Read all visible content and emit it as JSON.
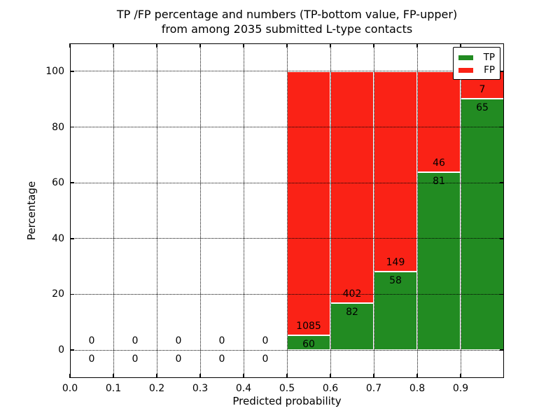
{
  "chart_data": {
    "type": "bar",
    "stacked": true,
    "title_lines": [
      "TP /FP percentage and numbers (TP-bottom value, FP-upper)",
      "from among 2035 submitted L-type contacts"
    ],
    "xlabel": "Predicted probability",
    "ylabel": "Percentage",
    "total_contacts": 2035,
    "xlim": [
      0.0,
      1.0
    ],
    "ylim": [
      -10,
      110
    ],
    "grid": "dotted",
    "bin_width": 0.1,
    "x_ticks": [
      0.0,
      0.1,
      0.2,
      0.3,
      0.4,
      0.5,
      0.6,
      0.7,
      0.8,
      0.9
    ],
    "x_tick_labels": [
      "0.0",
      "0.1",
      "0.2",
      "0.3",
      "0.4",
      "0.5",
      "0.6",
      "0.7",
      "0.8",
      "0.9"
    ],
    "y_ticks": [
      0,
      20,
      40,
      60,
      80,
      100
    ],
    "y_tick_labels": [
      "0",
      "20",
      "40",
      "60",
      "80",
      "100"
    ],
    "series_colors": {
      "tp": "#228b22",
      "fp": "#fa2216",
      "bar_edge": "#ffffff"
    },
    "legend": {
      "position": "upper-right",
      "items": [
        {
          "label": "TP",
          "color": "#228b22"
        },
        {
          "label": "FP",
          "color": "#fa2216"
        }
      ]
    },
    "bins": [
      {
        "range": [
          0.0,
          0.1
        ],
        "tp": 0,
        "fp": 0,
        "tp_percent": 0
      },
      {
        "range": [
          0.1,
          0.2
        ],
        "tp": 0,
        "fp": 0,
        "tp_percent": 0
      },
      {
        "range": [
          0.2,
          0.3
        ],
        "tp": 0,
        "fp": 0,
        "tp_percent": 0
      },
      {
        "range": [
          0.3,
          0.4
        ],
        "tp": 0,
        "fp": 0,
        "tp_percent": 0
      },
      {
        "range": [
          0.4,
          0.5
        ],
        "tp": 0,
        "fp": 0,
        "tp_percent": 0
      },
      {
        "range": [
          0.5,
          0.6
        ],
        "tp": 60,
        "fp": 1085,
        "tp_percent": 5.2
      },
      {
        "range": [
          0.6,
          0.7
        ],
        "tp": 82,
        "fp": 402,
        "tp_percent": 16.9
      },
      {
        "range": [
          0.7,
          0.8
        ],
        "tp": 58,
        "fp": 149,
        "tp_percent": 28.0
      },
      {
        "range": [
          0.8,
          0.9
        ],
        "tp": 81,
        "fp": 46,
        "tp_percent": 63.8
      },
      {
        "range": [
          0.9,
          1.0
        ],
        "tp": 65,
        "fp": 7,
        "tp_percent": 90.3
      }
    ]
  }
}
